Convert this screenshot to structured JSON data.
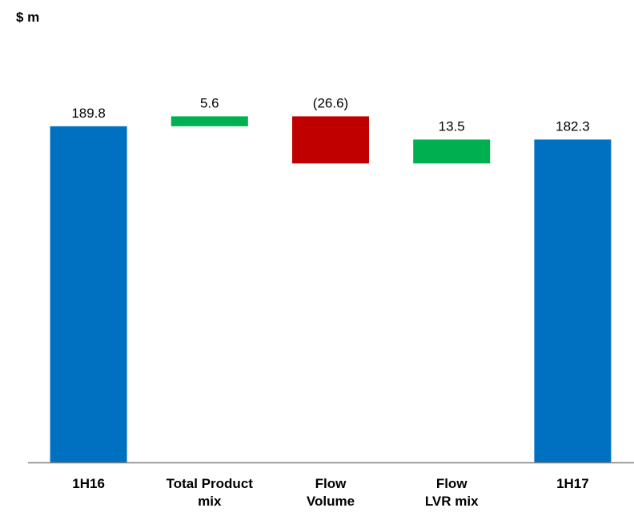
{
  "unit_label": "$ m",
  "chart_data": {
    "type": "bar",
    "subtype": "waterfall",
    "title": "",
    "xlabel": "",
    "ylabel": "$ m",
    "ylim": [
      0,
      211.4
    ],
    "grid": false,
    "categories": [
      {
        "label_lines": [
          "1H16"
        ],
        "value": 189.8,
        "kind": "total",
        "value_label": "189.8"
      },
      {
        "label_lines": [
          "Total Product",
          "mix"
        ],
        "value": 5.6,
        "kind": "increase",
        "value_label": "5.6"
      },
      {
        "label_lines": [
          "Flow",
          "Volume"
        ],
        "value": -26.6,
        "kind": "decrease",
        "value_label": "(26.6)"
      },
      {
        "label_lines": [
          "Flow",
          "LVR mix"
        ],
        "value": 13.5,
        "kind": "increase",
        "value_label": "13.5"
      },
      {
        "label_lines": [
          "1H17"
        ],
        "value": 182.3,
        "kind": "total",
        "value_label": "182.3"
      }
    ],
    "colors": {
      "total": "#0070C0",
      "increase": "#00B050",
      "decrease": "#C00000",
      "axis": "#808080"
    }
  }
}
